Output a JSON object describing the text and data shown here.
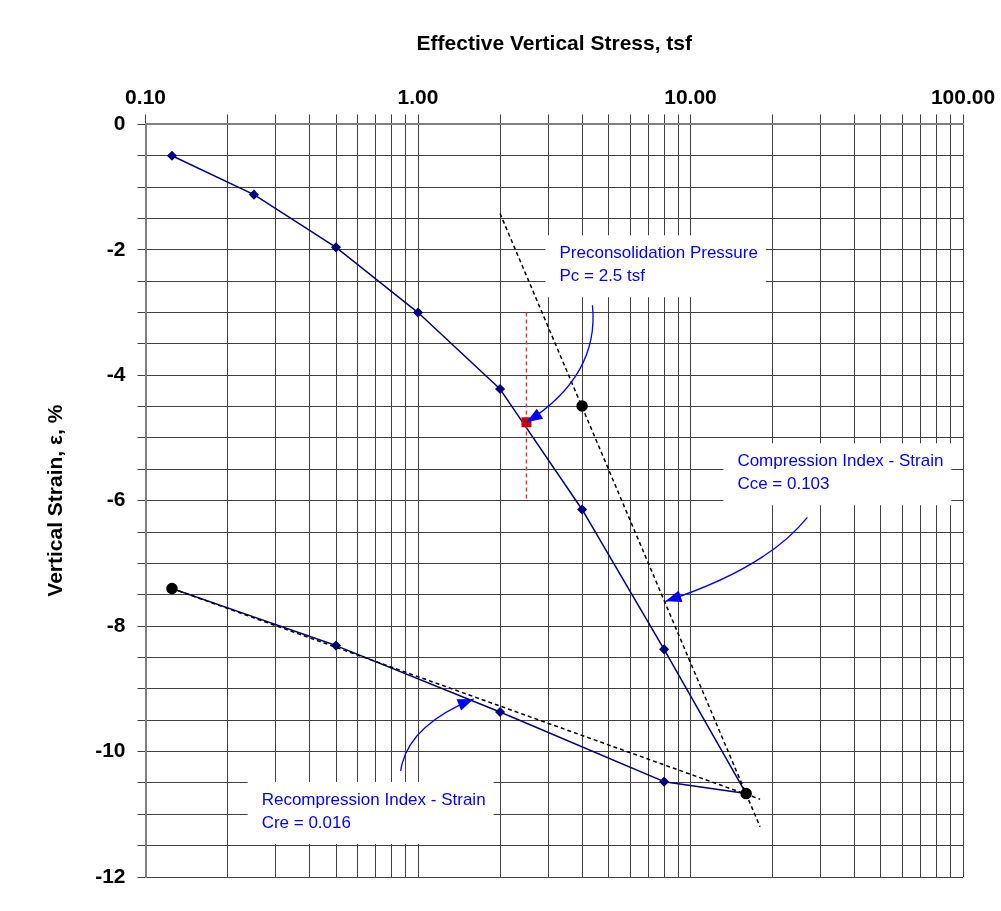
{
  "chart_data": {
    "type": "line",
    "xlabel": "Effective Vertical Stress, tsf",
    "ylabel": "Vertical Strain, ε, %",
    "log": "x",
    "grid": true,
    "legend": false,
    "xlim": [
      0.1,
      100
    ],
    "xticks": [
      {
        "value": 0.1,
        "label": "0.10"
      },
      {
        "value": 0.2,
        "label": null
      },
      {
        "value": 0.3,
        "label": null
      },
      {
        "value": 0.4,
        "label": null
      },
      {
        "value": 0.5,
        "label": null
      },
      {
        "value": 0.6,
        "label": null
      },
      {
        "value": 0.7,
        "label": null
      },
      {
        "value": 0.8,
        "label": null
      },
      {
        "value": 0.9,
        "label": null
      },
      {
        "value": 1,
        "label": "1.00"
      },
      {
        "value": 2,
        "label": null
      },
      {
        "value": 3,
        "label": null
      },
      {
        "value": 4,
        "label": null
      },
      {
        "value": 5,
        "label": null
      },
      {
        "value": 6,
        "label": null
      },
      {
        "value": 7,
        "label": null
      },
      {
        "value": 8,
        "label": null
      },
      {
        "value": 9,
        "label": null
      },
      {
        "value": 10,
        "label": "10.00"
      },
      {
        "value": 20,
        "label": null
      },
      {
        "value": 30,
        "label": null
      },
      {
        "value": 40,
        "label": null
      },
      {
        "value": 50,
        "label": null
      },
      {
        "value": 60,
        "label": null
      },
      {
        "value": 70,
        "label": null
      },
      {
        "value": 80,
        "label": null
      },
      {
        "value": 90,
        "label": null
      },
      {
        "value": 100,
        "label": "100.00"
      }
    ],
    "ylim": [
      -12,
      0
    ],
    "yticks": [
      0,
      {
        "value": -0.5,
        "label": null
      },
      {
        "value": -1,
        "label": null
      },
      {
        "value": -1.5,
        "label": null
      },
      -2,
      {
        "value": -2.5,
        "label": null
      },
      {
        "value": -3,
        "label": null
      },
      {
        "value": -3.5,
        "label": null
      },
      -4,
      {
        "value": -4.5,
        "label": null
      },
      {
        "value": -5,
        "label": null
      },
      {
        "value": -5.5,
        "label": null
      },
      -6,
      {
        "value": -6.5,
        "label": null
      },
      {
        "value": -7,
        "label": null
      },
      {
        "value": -7.5,
        "label": null
      },
      -8,
      {
        "value": -8.5,
        "label": null
      },
      {
        "value": -9,
        "label": null
      },
      {
        "value": -9.5,
        "label": null
      },
      -10,
      {
        "value": -10.5,
        "label": null
      },
      {
        "value": -11,
        "label": null
      },
      {
        "value": -11.5,
        "label": null
      },
      -12
    ],
    "series": [
      {
        "type": "line",
        "x": [
          0.125,
          0.25,
          0.5,
          1,
          2,
          4,
          8,
          16,
          8,
          2,
          0.5,
          0.125
        ],
        "values": [
          -0.5,
          -1.12,
          -1.96,
          -3.0,
          -4.22,
          -6.14,
          -8.37,
          -10.67,
          -10.48,
          -9.37,
          -8.31,
          -7.4
        ],
        "color": "#000080",
        "marker": "diamond",
        "line_style": "solid"
      },
      {
        "type": "line",
        "x": [
          2,
          18
        ],
        "values": [
          -1.42,
          -11.2
        ],
        "color": "#000000",
        "marker": "none",
        "line_style": "dashed"
      },
      {
        "type": "line",
        "x": [
          0.125,
          18
        ],
        "values": [
          -7.4,
          -10.76
        ],
        "color": "#000000",
        "marker": "none",
        "line_style": "dashed"
      },
      {
        "type": "line",
        "x": [
          2.5,
          2.5
        ],
        "values": [
          -3,
          -6
        ],
        "color": "#d04040",
        "marker": "none",
        "line_style": "dashed"
      },
      {
        "type": "scatter",
        "x": [
          0.125,
          4,
          16
        ],
        "values": [
          -7.4,
          -4.49,
          -10.67
        ],
        "color": "#000000",
        "marker": "circle"
      },
      {
        "type": "scatter",
        "x": [
          2.5
        ],
        "values": [
          -4.75
        ],
        "color": "#cc0000",
        "marker": "square"
      }
    ],
    "annotations": [
      {
        "text": "Preconsolidation Pressure\nPc = 2.5 tsf",
        "x": 2.5,
        "y": -4.75
      },
      "Compression Index - Strain\nCce = 0.103",
      {
        "text": "Recompression Index - Strain\nCre = 0.016",
        "x": 1.6,
        "y": -9.16
      }
    ]
  }
}
